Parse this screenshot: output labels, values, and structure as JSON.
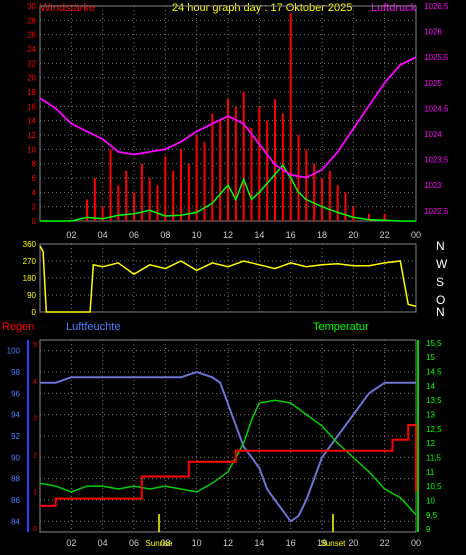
{
  "header": {
    "left_label": "Windstärke",
    "title": "24 hour graph day : 17 Oktober 2025",
    "right_label": "Luftdruck"
  },
  "compass": [
    "N",
    "W",
    "S",
    "O",
    "N"
  ],
  "bottom_labels": {
    "left": "Regen",
    "center_left": "Luftfeuchte",
    "center_right": "Temperatur"
  },
  "colors": {
    "wind": "#ff0000",
    "gust": "#00ff00",
    "pressure": "#ff00ff",
    "direction": "#ffff00",
    "humidity": "#6f73d2",
    "temperature": "#00d000",
    "rain": "#ff0000",
    "header_left": "#ff0000",
    "header_title": "#ffff00",
    "header_right": "#ff00ff",
    "compass": "#ffffff",
    "regen": "#ff0000",
    "luftfeuchte": "#4a7fff",
    "temperatur": "#00ff00"
  },
  "chart_data": [
    {
      "type": "line",
      "name": "wind-pressure",
      "xlabel": "",
      "x_ticks": [
        "02",
        "04",
        "06",
        "08",
        "10",
        "12",
        "14",
        "16",
        "18",
        "20",
        "22",
        "00"
      ],
      "y_left_ticks": [
        "30",
        "28",
        "26",
        "24",
        "22",
        "20",
        "18",
        "16",
        "14",
        "12",
        "10",
        "8",
        "6",
        "4",
        "2",
        "0"
      ],
      "y_right_ticks": [
        "1026,5",
        "1026",
        "1025,5",
        "1025",
        "1024,5",
        "1024",
        "1023,5",
        "1023",
        "1022,5"
      ],
      "ylim_left": [
        0,
        30
      ],
      "ylim_right": [
        1022.3,
        1026.5
      ],
      "grid": true,
      "series": [
        {
          "role": "wind",
          "x": [
            0,
            1,
            2,
            3,
            3.5,
            4,
            4.5,
            5,
            5.5,
            6,
            6.5,
            7,
            7.5,
            8,
            8.5,
            9,
            9.5,
            10,
            10.5,
            11,
            11.5,
            12,
            12.5,
            13,
            13.5,
            14,
            14.5,
            15,
            15.5,
            16,
            16.5,
            17,
            17.5,
            18,
            18.5,
            19,
            19.5,
            20,
            21,
            22,
            23,
            24
          ],
          "y": [
            0,
            0,
            0,
            3,
            6,
            2,
            10,
            5,
            7,
            4,
            8,
            6,
            5,
            9,
            7,
            10,
            8,
            12,
            11,
            15,
            14,
            17,
            16,
            18,
            13,
            16,
            14,
            17,
            15,
            29,
            12,
            10,
            8,
            6,
            7,
            5,
            4,
            2,
            1,
            1,
            0,
            0
          ]
        },
        {
          "role": "gust",
          "x": [
            0,
            1,
            2,
            3,
            4,
            5,
            6,
            7,
            8,
            9,
            10,
            11,
            12,
            12.5,
            13,
            13.5,
            14,
            15,
            15.5,
            16,
            16.5,
            17,
            18,
            19,
            20,
            21,
            22,
            23,
            24
          ],
          "y": [
            0,
            0,
            0,
            0.5,
            0.3,
            0.8,
            1,
            1.5,
            0.7,
            0.8,
            1.2,
            2.5,
            5,
            3,
            5.8,
            3,
            4,
            6.5,
            7.8,
            6,
            4,
            3,
            2,
            1.2,
            0.5,
            0.2,
            0.1,
            0,
            0
          ]
        },
        {
          "role": "pressure",
          "x": [
            0,
            1,
            2,
            3,
            4,
            5,
            6,
            7,
            8,
            9,
            10,
            11,
            12,
            13,
            14,
            15,
            16,
            17,
            18,
            19,
            20,
            21,
            22,
            23,
            24
          ],
          "y": [
            1024.7,
            1024.5,
            1024.2,
            1024.05,
            1023.9,
            1023.65,
            1023.6,
            1023.65,
            1023.7,
            1023.85,
            1024.05,
            1024.2,
            1024.35,
            1024.2,
            1023.8,
            1023.4,
            1023.2,
            1023.15,
            1023.3,
            1023.65,
            1024.1,
            1024.55,
            1025.0,
            1025.35,
            1025.5
          ]
        }
      ]
    },
    {
      "type": "line",
      "name": "wind-direction",
      "y_ticks": [
        "360",
        "270",
        "180",
        "90",
        "0"
      ],
      "ylim": [
        0,
        360
      ],
      "series": [
        {
          "role": "direction",
          "x": [
            0,
            0.2,
            0.4,
            3.2,
            3.4,
            4,
            5,
            6,
            7,
            8,
            9,
            10,
            11,
            12,
            13,
            14,
            15,
            16,
            17,
            18,
            19,
            20,
            21,
            22,
            23,
            23.5,
            24
          ],
          "y": [
            350,
            320,
            0,
            0,
            250,
            240,
            260,
            200,
            250,
            230,
            270,
            220,
            260,
            240,
            270,
            250,
            230,
            260,
            240,
            250,
            255,
            245,
            245,
            260,
            270,
            40,
            30
          ]
        }
      ]
    },
    {
      "type": "line",
      "name": "humidity-temperature-rain",
      "x_ticks": [
        "02",
        "04",
        "06",
        "08",
        "10",
        "12",
        "14",
        "16",
        "18",
        "20",
        "22",
        "00"
      ],
      "y_left_ticks": [
        "100",
        "98",
        "96",
        "94",
        "92",
        "90",
        "88",
        "86",
        "84"
      ],
      "y_right_ticks": [
        "15,5",
        "15",
        "14,5",
        "14",
        "13,5",
        "13",
        "12,5",
        "12",
        "11,5",
        "11",
        "10,5",
        "10",
        "9,5",
        "9"
      ],
      "rain_ticks": [
        "5",
        "4",
        "3",
        "2",
        "1",
        "0"
      ],
      "ylim_left": [
        83,
        101
      ],
      "ylim_right": [
        8.9,
        15.6
      ],
      "annotations": [
        {
          "label": "Sunrise",
          "x": 7.6
        },
        {
          "label": "Sunset",
          "x": 18.7
        }
      ],
      "series": [
        {
          "role": "humidity",
          "x": [
            0,
            1,
            2,
            3,
            4,
            5,
            6,
            7,
            8,
            9,
            10,
            11,
            11.5,
            12,
            12.5,
            13,
            13.5,
            14,
            14.5,
            15,
            15.5,
            16,
            16.5,
            17,
            17.5,
            18,
            19,
            20,
            21,
            22,
            23,
            24
          ],
          "y": [
            97,
            97,
            97.5,
            97.5,
            97.5,
            97.5,
            97.5,
            97.5,
            97.5,
            97.5,
            98,
            97.5,
            97,
            95,
            93,
            91,
            90,
            89,
            87,
            86,
            85,
            84,
            84.5,
            86,
            88,
            90,
            92,
            94,
            96,
            97,
            97,
            97
          ]
        },
        {
          "role": "temperature",
          "x": [
            0,
            1,
            2,
            3,
            4,
            5,
            6,
            7,
            8,
            9,
            10,
            11,
            12,
            12.5,
            13,
            13.5,
            14,
            15,
            16,
            17,
            18,
            19,
            20,
            21,
            22,
            23,
            24
          ],
          "y": [
            10.6,
            10.5,
            10.3,
            10.5,
            10.5,
            10.4,
            10.5,
            10.4,
            10.5,
            10.4,
            10.3,
            10.6,
            11,
            11.5,
            12,
            12.8,
            13.4,
            13.5,
            13.4,
            13.0,
            12.6,
            12.0,
            11.5,
            11.0,
            10.4,
            10.1,
            9.5
          ]
        },
        {
          "role": "rain",
          "x": [
            0,
            1,
            2,
            6,
            6.5,
            9,
            9.5,
            12,
            12.5,
            16,
            16.5,
            22,
            22.5,
            23.5,
            24
          ],
          "y": [
            0.6,
            0.8,
            0.8,
            0.8,
            1.4,
            1.4,
            1.8,
            1.8,
            2.1,
            2.1,
            2.1,
            2.1,
            2.4,
            2.8,
            1.0
          ]
        }
      ]
    }
  ]
}
